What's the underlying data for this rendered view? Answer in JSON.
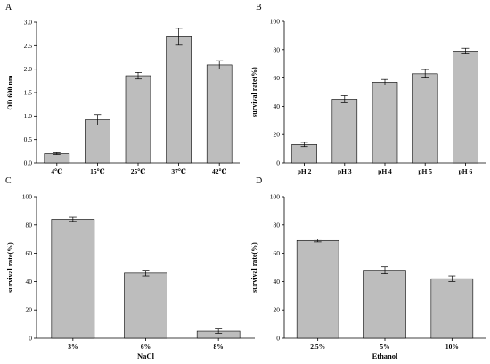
{
  "chart_data": [
    {
      "panel": "A",
      "type": "bar",
      "categories": [
        "4℃",
        "15℃",
        "25℃",
        "37℃",
        "42℃"
      ],
      "values": [
        0.2,
        0.92,
        1.86,
        2.69,
        2.09
      ],
      "errors": [
        0.02,
        0.11,
        0.07,
        0.18,
        0.09
      ],
      "xlabel": "",
      "ylabel": "OD 600 nm",
      "ylim": [
        0,
        3.0
      ],
      "yticks": [
        "0.0",
        "0.5",
        "1.0",
        "1.5",
        "2.0",
        "2.5",
        "3.0"
      ],
      "bar_color": "#bdbdbd"
    },
    {
      "panel": "B",
      "type": "bar",
      "categories": [
        "pH 2",
        "pH 3",
        "pH 4",
        "pH 5",
        "pH 6"
      ],
      "values": [
        13,
        45,
        57,
        63,
        79
      ],
      "errors": [
        1.5,
        2.5,
        2,
        3,
        2
      ],
      "xlabel": "",
      "ylabel": "survival rate(%)",
      "ylim": [
        0,
        100
      ],
      "yticks": [
        "0",
        "20",
        "40",
        "60",
        "80",
        "100"
      ],
      "bar_color": "#bdbdbd"
    },
    {
      "panel": "C",
      "type": "bar",
      "categories": [
        "3%",
        "6%",
        "8%"
      ],
      "values": [
        84,
        46,
        5
      ],
      "errors": [
        1.5,
        2,
        1.5
      ],
      "xlabel": "NaCl",
      "ylabel": "survival rate(%)",
      "ylim": [
        0,
        100
      ],
      "yticks": [
        "0",
        "20",
        "40",
        "60",
        "80",
        "100"
      ],
      "bar_color": "#bdbdbd"
    },
    {
      "panel": "D",
      "type": "bar",
      "categories": [
        "2.5%",
        "5%",
        "10%"
      ],
      "values": [
        69,
        48,
        42
      ],
      "errors": [
        1,
        2.5,
        2
      ],
      "xlabel": "Ethanol",
      "ylabel": "survival rate(%)",
      "ylim": [
        0,
        100
      ],
      "yticks": [
        "0",
        "20",
        "40",
        "60",
        "80",
        "100"
      ],
      "bar_color": "#bdbdbd"
    }
  ]
}
